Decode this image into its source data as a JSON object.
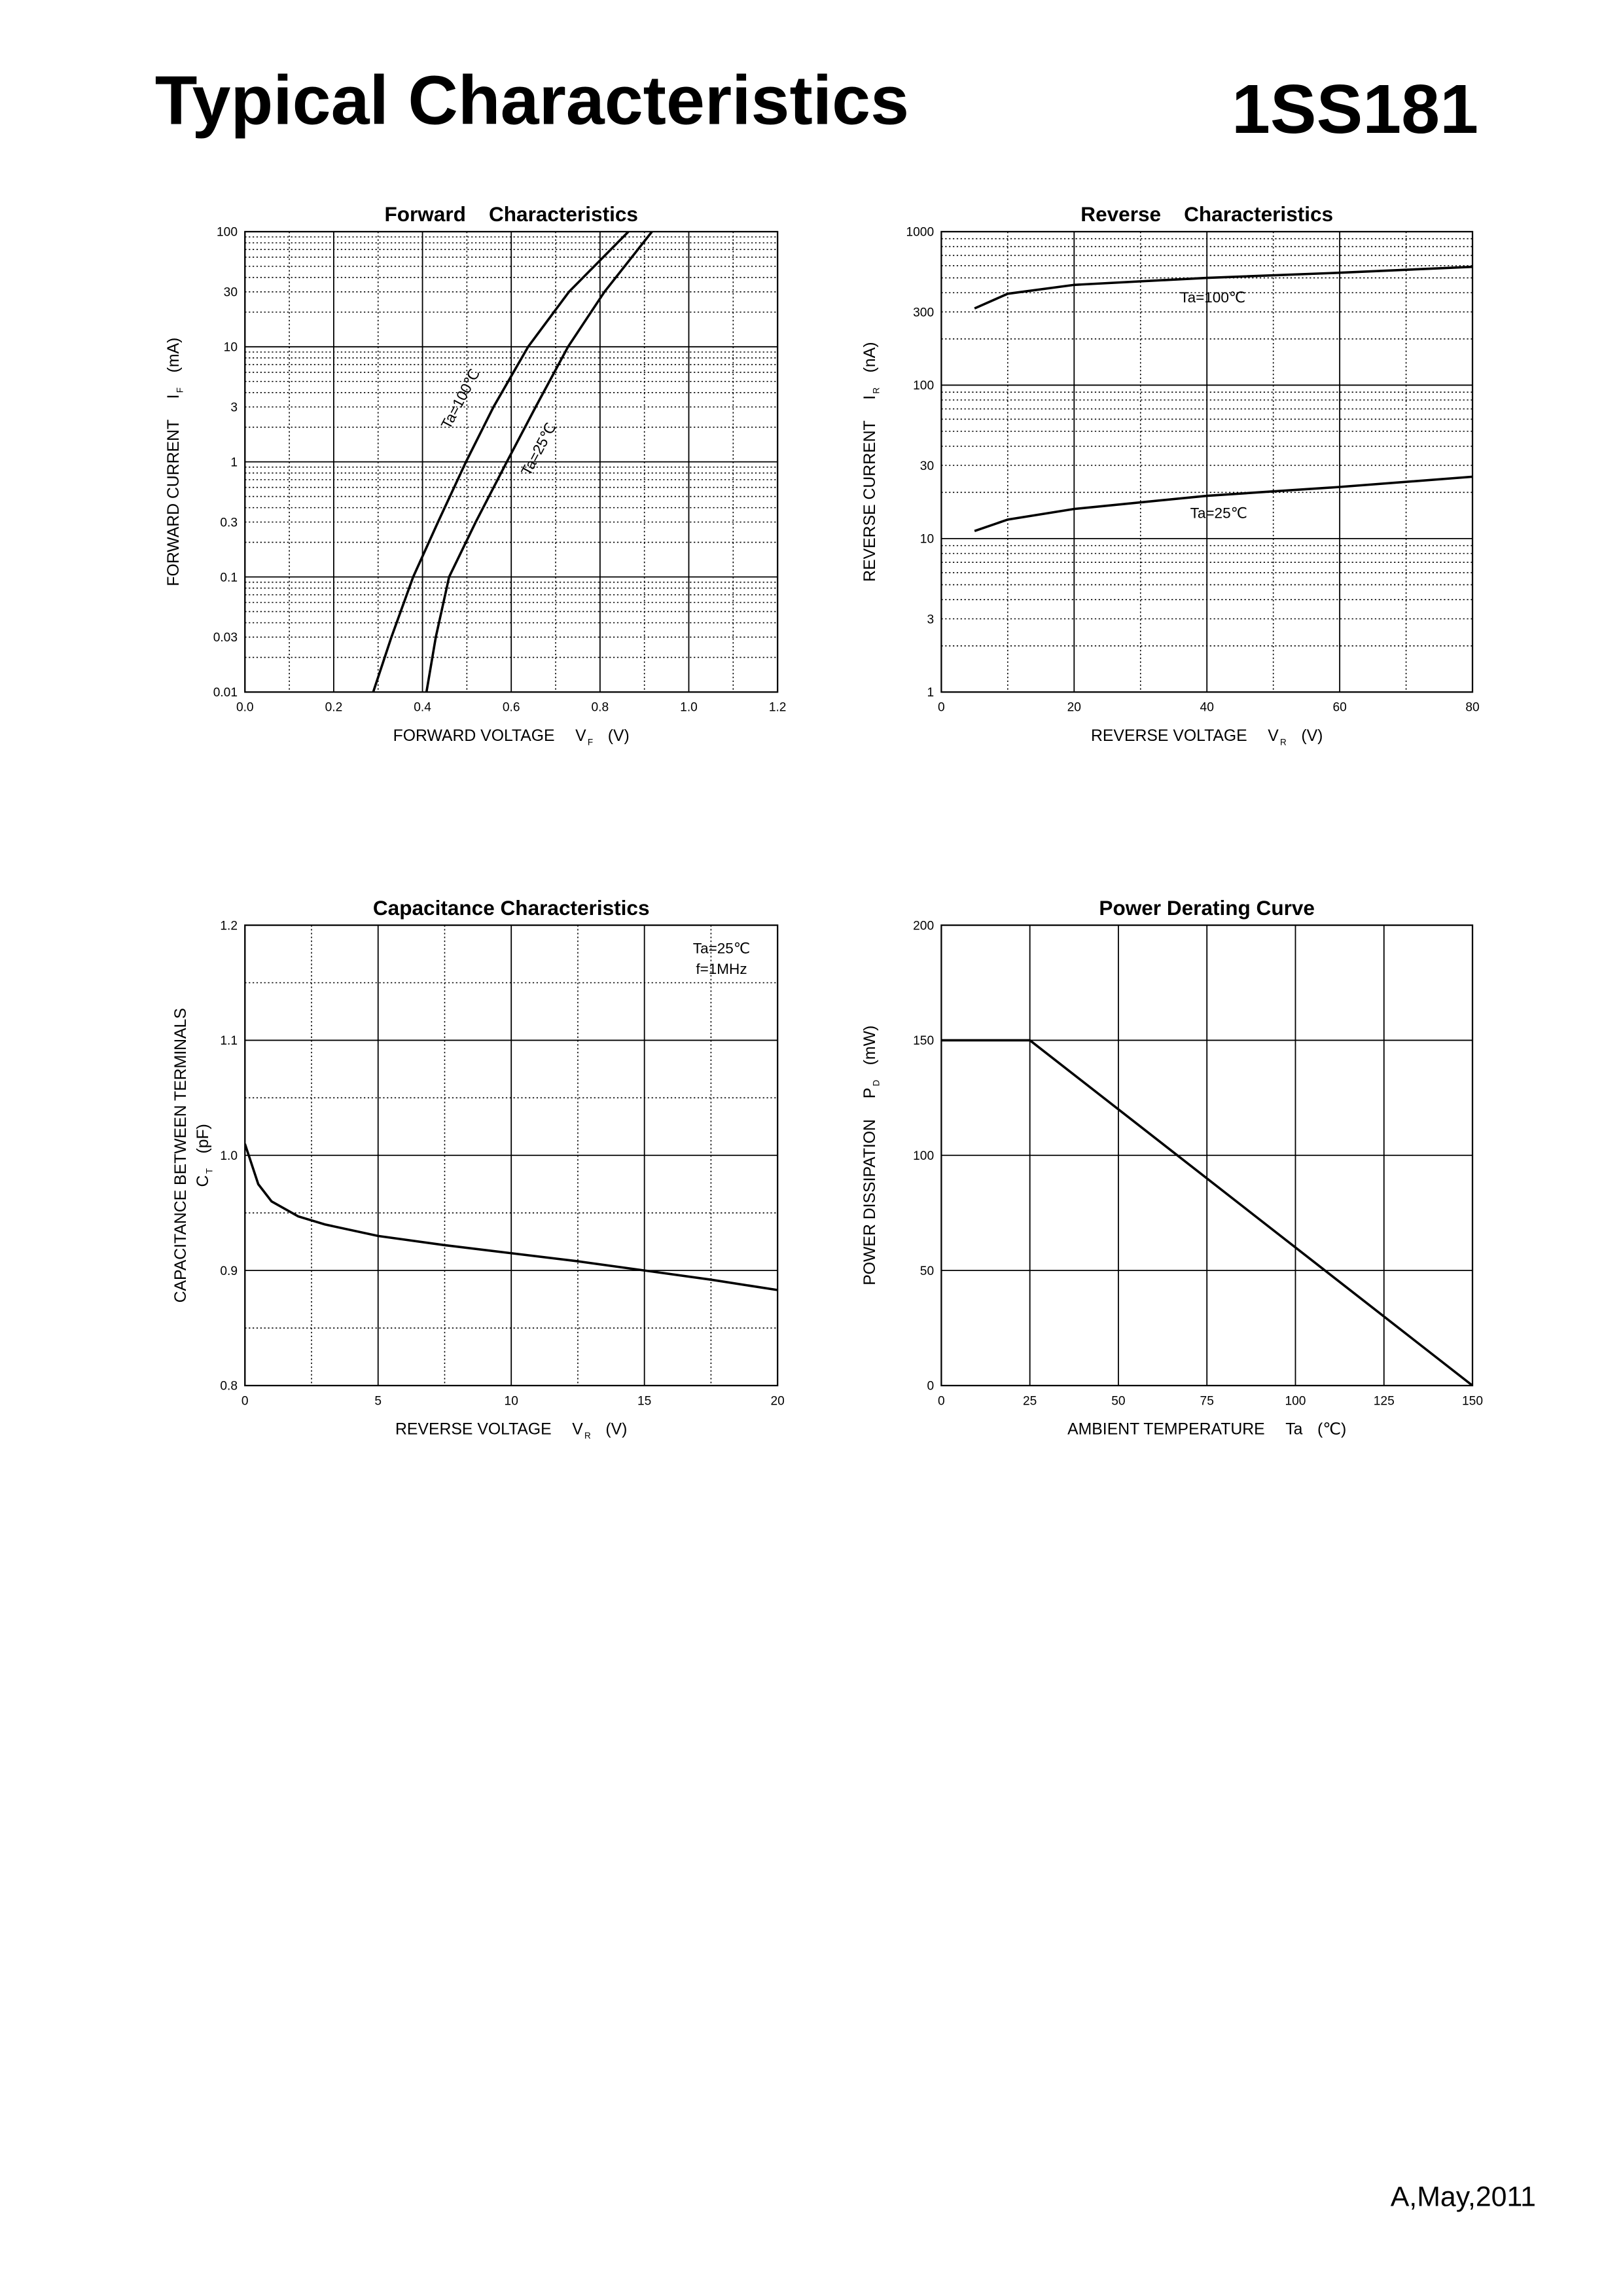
{
  "header": {
    "title": "Typical Characteristics",
    "part": "1SS181"
  },
  "footer": "A,May,2011",
  "chart_data": [
    {
      "type": "line",
      "title": "Forward    Characteristics",
      "xlabel": {
        "text": "FORWARD VOLTAGE",
        "symbol": "V",
        "sub": "F",
        "unit": "(V)"
      },
      "ylabel": [
        {
          "text": "FORWARD CURRENT",
          "symbol": "I",
          "sub": "F",
          "unit": "(mA)"
        }
      ],
      "xlim": [
        0,
        1.2
      ],
      "xticks": [
        {
          "value": 0,
          "label": "0.0"
        },
        0.2,
        0.4,
        0.6,
        0.8,
        {
          "value": 1,
          "label": "1.0"
        },
        1.2
      ],
      "ylim": [
        0.01,
        100
      ],
      "yscale": "log",
      "yticks": [
        0.01,
        0.03,
        0.1,
        0.3,
        1,
        3,
        10,
        30,
        100
      ],
      "grid": true,
      "minor_grid": true,
      "series": [
        {
          "name": "Ta=100℃",
          "color": "#000000",
          "x": [
            0.289,
            0.33,
            0.379,
            0.435,
            0.498,
            0.56,
            0.638,
            0.73,
            0.864
          ],
          "values": [
            0.01,
            0.03,
            0.1,
            0.3,
            1,
            3,
            10,
            30,
            100
          ]
        },
        {
          "name": "Ta=25℃",
          "color": "#000000",
          "x": [
            0.409,
            0.43,
            0.46,
            0.52,
            0.59,
            0.655,
            0.728,
            0.81,
            0.917
          ],
          "values": [
            0.01,
            0.03,
            0.1,
            0.3,
            1,
            3,
            10,
            30,
            100
          ]
        }
      ]
    },
    {
      "type": "line",
      "title": "Reverse    Characteristics",
      "xlabel": {
        "text": "REVERSE VOLTAGE",
        "symbol": "V",
        "sub": "R",
        "unit": "(V)"
      },
      "ylabel": [
        {
          "text": "REVERSE CURRENT",
          "symbol": "I",
          "sub": "R",
          "unit": "(nA)"
        }
      ],
      "xlim": [
        0,
        80
      ],
      "xticks": [
        0,
        20,
        40,
        60,
        80
      ],
      "ylim": [
        1,
        1000
      ],
      "yscale": "log",
      "yticks": [
        1,
        3,
        10,
        30,
        100,
        300,
        1000
      ],
      "grid": true,
      "minor_grid": true,
      "series": [
        {
          "name": "Ta=100℃",
          "color": "#000000",
          "x": [
            5,
            10,
            20,
            40,
            60,
            80
          ],
          "values": [
            316,
            394,
            450,
            500,
            540,
            590
          ]
        },
        {
          "name": "Ta=25℃",
          "color": "#000000",
          "x": [
            5,
            10,
            20,
            40,
            60,
            80
          ],
          "values": [
            11.2,
            13.3,
            15.6,
            19,
            21.7,
            25.3
          ]
        }
      ]
    },
    {
      "type": "line",
      "title": "Capacitance Characteristics",
      "xlabel": {
        "text": "REVERSE VOLTAGE",
        "symbol": "V",
        "sub": "R",
        "unit": "(V)"
      },
      "ylabel": [
        {
          "text": "CAPACITANCE BETWEEN TERMINALS"
        },
        {
          "symbol": "C",
          "sub": "T",
          "unit": "(pF)"
        }
      ],
      "xlim": [
        0,
        20
      ],
      "xticks": [
        0,
        5,
        10,
        15,
        20
      ],
      "ylim": [
        0.8,
        1.2
      ],
      "yticks": [
        0.8,
        0.9,
        {
          "value": 1,
          "label": "1.0"
        },
        1.1,
        1.2
      ],
      "grid": true,
      "minor_grid": true,
      "annotations": [
        "Ta=25℃",
        "f=1MHz"
      ],
      "series": [
        {
          "color": "#000000",
          "x": [
            0,
            0.5,
            1,
            2,
            3,
            5,
            7.5,
            10,
            12.5,
            15,
            17.5,
            20
          ],
          "values": [
            1.01,
            0.975,
            0.96,
            0.947,
            0.94,
            0.93,
            0.922,
            0.915,
            0.908,
            0.9,
            0.892,
            0.883
          ]
        }
      ]
    },
    {
      "type": "line",
      "title": "Power Derating Curve",
      "xlabel": {
        "text": "AMBIENT TEMPERATURE",
        "symbol": "Ta",
        "unit": "(℃)"
      },
      "ylabel": [
        {
          "text": "POWER DISSIPATION",
          "symbol": "P",
          "sub": "D",
          "unit": "(mW)"
        }
      ],
      "xlim": [
        0,
        150
      ],
      "xticks": [
        0,
        25,
        50,
        75,
        100,
        125,
        150
      ],
      "ylim": [
        0,
        200
      ],
      "yticks": [
        0,
        50,
        100,
        150,
        200
      ],
      "grid": true,
      "minor_grid": false,
      "series": [
        {
          "color": "#000000",
          "x": [
            0,
            25,
            150
          ],
          "values": [
            150,
            150,
            0
          ]
        }
      ]
    }
  ]
}
